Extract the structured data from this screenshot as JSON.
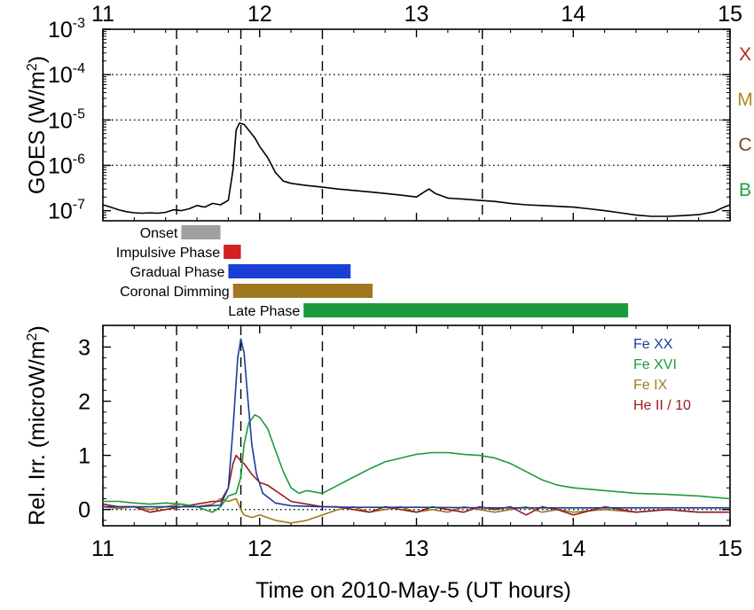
{
  "chart_data": [
    {
      "type": "line",
      "panel": "top",
      "ylabel": "GOES (W/m²)",
      "ylabel_main": "GOES (W/m",
      "ylabel_sup": "2",
      "ylabel_close": ")",
      "y_scale": "log",
      "xlim": [
        11,
        15
      ],
      "ylim": [
        6e-08,
        0.001
      ],
      "x_ticks": [
        11,
        12,
        13,
        14,
        15
      ],
      "x_tick_labels": [
        "11",
        "12",
        "13",
        "14",
        "15"
      ],
      "x_ticks_on_top": true,
      "y_ticks": [
        {
          "value": 1e-07,
          "base": "10",
          "exp": "-7"
        },
        {
          "value": 1e-06,
          "base": "10",
          "exp": "-6"
        },
        {
          "value": 1e-05,
          "base": "10",
          "exp": "-5"
        },
        {
          "value": 0.0001,
          "base": "10",
          "exp": "-4"
        },
        {
          "value": 0.001,
          "base": "10",
          "exp": "-3"
        }
      ],
      "dotted_levels": [
        1e-06,
        1e-05,
        0.0001
      ],
      "vertical_dashed_lines": [
        11.47,
        11.88,
        12.4,
        13.42
      ],
      "flare_classes": [
        {
          "label": "X",
          "value": 0.0003,
          "color": "#c0201c"
        },
        {
          "label": "M",
          "value": 3e-05,
          "color": "#b08a1f"
        },
        {
          "label": "C",
          "value": 3e-06,
          "color": "#6a5214"
        },
        {
          "label": "B",
          "value": 3e-07,
          "color": "#1aa33a"
        }
      ],
      "series": [
        {
          "color": "#000000",
          "x": [
            11.0,
            11.05,
            11.1,
            11.15,
            11.2,
            11.25,
            11.3,
            11.35,
            11.4,
            11.45,
            11.5,
            11.55,
            11.6,
            11.65,
            11.7,
            11.75,
            11.8,
            11.83,
            11.85,
            11.87,
            11.9,
            11.93,
            11.97,
            12.0,
            12.05,
            12.1,
            12.15,
            12.2,
            12.3,
            12.4,
            12.5,
            12.6,
            12.7,
            12.8,
            12.9,
            13.0,
            13.05,
            13.08,
            13.12,
            13.2,
            13.3,
            13.4,
            13.5,
            13.6,
            13.7,
            13.8,
            13.9,
            14.0,
            14.1,
            14.2,
            14.3,
            14.4,
            14.5,
            14.6,
            14.7,
            14.8,
            14.9,
            14.95,
            15.0
          ],
          "y": [
            1.35e-07,
            1.2e-07,
            1.05e-07,
            9.5e-08,
            9e-08,
            8.8e-08,
            9e-08,
            8.8e-08,
            9.2e-08,
            1.05e-07,
            1e-07,
            1.1e-07,
            1.3e-07,
            1.2e-07,
            1.45e-07,
            1.35e-07,
            1.7e-07,
            8e-07,
            6e-06,
            8.5e-06,
            8e-06,
            6e-06,
            4e-06,
            2.6e-06,
            1.5e-06,
            7e-07,
            4.5e-07,
            4e-07,
            3.6e-07,
            3.3e-07,
            3e-07,
            2.8e-07,
            2.6e-07,
            2.4e-07,
            2.2e-07,
            2e-07,
            2.6e-07,
            3e-07,
            2.4e-07,
            1.9e-07,
            1.8e-07,
            1.7e-07,
            1.6e-07,
            1.45e-07,
            1.35e-07,
            1.3e-07,
            1.25e-07,
            1.2e-07,
            1.1e-07,
            1e-07,
            9e-08,
            8e-08,
            7.5e-08,
            7.5e-08,
            7.8e-08,
            8.2e-08,
            9.5e-08,
            1.15e-07,
            1.35e-07
          ]
        }
      ]
    },
    {
      "type": "bar",
      "panel": "phases",
      "orientation": "horizontal",
      "categories": [
        "Onset",
        "Impulsive Phase",
        "Gradual Phase",
        "Coronal Dimming",
        "Late Phase"
      ],
      "ranges": [
        [
          11.5,
          11.75
        ],
        [
          11.77,
          11.88
        ],
        [
          11.8,
          12.58
        ],
        [
          11.83,
          12.72
        ],
        [
          12.28,
          14.35
        ]
      ],
      "colors": [
        "#a0a0a0",
        "#d42020",
        "#1a3fd6",
        "#a07820",
        "#1a9a3a"
      ]
    },
    {
      "type": "line",
      "panel": "bottom",
      "ylabel": "Rel. Irr. (microW/m²)",
      "ylabel_main": "Rel. Irr. (microW/m",
      "ylabel_sup": "2",
      "ylabel_close": ")",
      "xlabel": "Time on 2010-May-5 (UT hours)",
      "xlim": [
        11,
        15
      ],
      "ylim": [
        -0.3,
        3.4
      ],
      "x_ticks": [
        11,
        12,
        13,
        14,
        15
      ],
      "x_tick_labels": [
        "11",
        "12",
        "13",
        "14",
        "15"
      ],
      "y_ticks": [
        0,
        1,
        2,
        3
      ],
      "y_tick_labels": [
        "0",
        "1",
        "2",
        "3"
      ],
      "zero_line": true,
      "vertical_dashed_lines": [
        11.47,
        11.88,
        12.4,
        13.42
      ],
      "legend": "top-right",
      "series": [
        {
          "name": "Fe XX",
          "color": "#1a3d9c",
          "x": [
            11.0,
            11.2,
            11.4,
            11.6,
            11.75,
            11.8,
            11.83,
            11.86,
            11.88,
            11.9,
            11.92,
            11.95,
            11.98,
            12.02,
            12.1,
            12.2,
            12.4,
            12.6,
            13.0,
            13.5,
            14.0,
            14.5,
            15.0
          ],
          "y": [
            0.05,
            0.05,
            0.05,
            0.05,
            0.08,
            0.4,
            1.5,
            2.8,
            3.15,
            2.9,
            2.2,
            1.2,
            0.65,
            0.3,
            0.12,
            0.07,
            0.05,
            0.04,
            0.04,
            0.03,
            0.03,
            0.03,
            0.03
          ]
        },
        {
          "name": "Fe XVI",
          "color": "#1d9a3a",
          "x": [
            11.0,
            11.1,
            11.2,
            11.3,
            11.4,
            11.5,
            11.6,
            11.65,
            11.7,
            11.75,
            11.8,
            11.85,
            11.88,
            11.9,
            11.93,
            11.97,
            12.0,
            12.05,
            12.1,
            12.15,
            12.2,
            12.25,
            12.3,
            12.4,
            12.5,
            12.6,
            12.7,
            12.8,
            12.9,
            13.0,
            13.1,
            13.2,
            13.3,
            13.4,
            13.5,
            13.6,
            13.7,
            13.8,
            13.9,
            14.0,
            14.2,
            14.4,
            14.6,
            14.8,
            15.0
          ],
          "y": [
            0.15,
            0.15,
            0.12,
            0.1,
            0.12,
            0.1,
            0.05,
            0.0,
            -0.05,
            0.05,
            0.25,
            0.3,
            0.6,
            1.2,
            1.6,
            1.75,
            1.7,
            1.5,
            1.1,
            0.7,
            0.4,
            0.3,
            0.35,
            0.3,
            0.45,
            0.6,
            0.75,
            0.88,
            0.95,
            1.02,
            1.05,
            1.05,
            1.02,
            1.0,
            0.95,
            0.85,
            0.7,
            0.55,
            0.45,
            0.4,
            0.35,
            0.3,
            0.28,
            0.25,
            0.2
          ]
        },
        {
          "name": "Fe IX",
          "color": "#a07a1f",
          "x": [
            11.0,
            11.1,
            11.2,
            11.3,
            11.4,
            11.5,
            11.6,
            11.7,
            11.75,
            11.8,
            11.85,
            11.88,
            11.9,
            11.95,
            12.0,
            12.05,
            12.1,
            12.2,
            12.3,
            12.4,
            12.5,
            12.6,
            12.7,
            12.8,
            12.9,
            13.0,
            13.1,
            13.2,
            13.3,
            13.4,
            13.5,
            13.6,
            13.7,
            13.8,
            13.9,
            14.0,
            14.2,
            14.4,
            14.6,
            14.8,
            15.0
          ],
          "y": [
            0.05,
            0.02,
            0.05,
            0.0,
            0.05,
            0.1,
            0.05,
            0.1,
            0.2,
            0.15,
            0.2,
            0.0,
            -0.1,
            -0.15,
            -0.1,
            -0.15,
            -0.2,
            -0.25,
            -0.2,
            -0.1,
            0.0,
            0.05,
            -0.05,
            0.0,
            0.05,
            -0.05,
            0.0,
            -0.05,
            0.05,
            0.0,
            -0.05,
            0.0,
            0.05,
            -0.05,
            0.0,
            -0.05,
            0.0,
            -0.05,
            0.0,
            -0.05,
            -0.05
          ]
        },
        {
          "name": "He II / 10",
          "color": "#9a1a1a",
          "x": [
            11.0,
            11.1,
            11.2,
            11.3,
            11.4,
            11.5,
            11.6,
            11.7,
            11.75,
            11.8,
            11.83,
            11.85,
            11.88,
            11.9,
            11.95,
            12.0,
            12.05,
            12.1,
            12.15,
            12.2,
            12.3,
            12.4,
            12.5,
            12.6,
            12.7,
            12.8,
            12.9,
            13.0,
            13.1,
            13.2,
            13.3,
            13.4,
            13.5,
            13.6,
            13.7,
            13.8,
            13.9,
            14.0,
            14.2,
            14.4,
            14.6,
            14.8,
            15.0
          ],
          "y": [
            0.1,
            0.05,
            0.05,
            -0.05,
            0.0,
            0.05,
            0.1,
            0.15,
            0.15,
            0.4,
            0.85,
            1.0,
            0.9,
            0.85,
            0.65,
            0.5,
            0.45,
            0.35,
            0.25,
            0.15,
            0.1,
            0.05,
            0.05,
            0.0,
            -0.05,
            0.05,
            0.0,
            -0.05,
            0.05,
            0.0,
            -0.05,
            0.05,
            0.0,
            0.05,
            -0.1,
            0.05,
            0.0,
            -0.1,
            0.05,
            -0.05,
            0.0,
            -0.05,
            -0.05
          ]
        }
      ]
    }
  ]
}
